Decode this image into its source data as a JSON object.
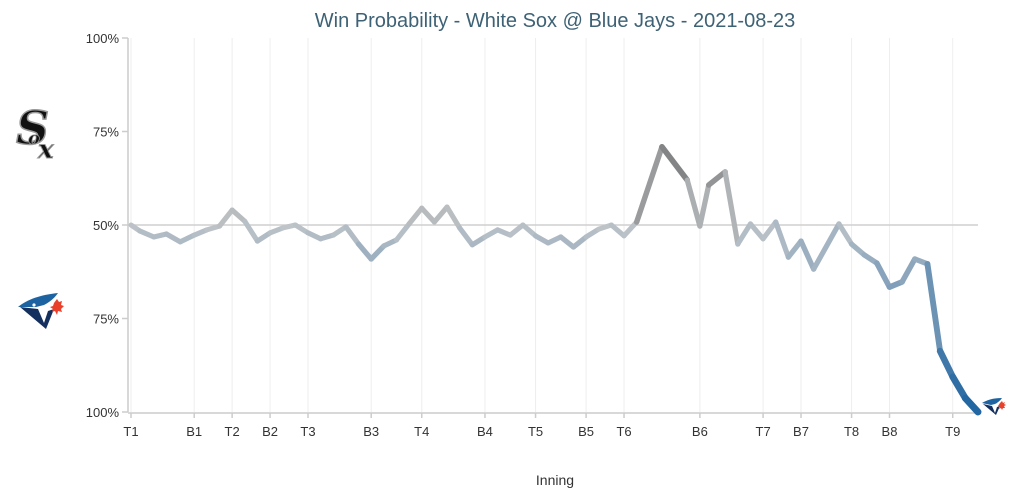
{
  "chart_data": {
    "type": "line",
    "title": "Win Probability - White Sox @ Blue Jays - 2021-08-23",
    "xlabel": "Inning",
    "ylabel": "",
    "y_meaning": "White Sox win probability (%); 50 = even, 100 = White Sox certain, 0 = Blue Jays certain",
    "ylim": [
      0,
      100
    ],
    "y_ticks": [
      {
        "value": 100,
        "label": "100%"
      },
      {
        "value": 75,
        "label": "75%"
      },
      {
        "value": 50,
        "label": "50%"
      },
      {
        "value": 25,
        "label": "75%"
      },
      {
        "value": 0,
        "label": "100%"
      }
    ],
    "x_ticks": [
      {
        "index": 0,
        "label": "T1"
      },
      {
        "index": 5,
        "label": "B1"
      },
      {
        "index": 8,
        "label": "T2"
      },
      {
        "index": 11,
        "label": "B2"
      },
      {
        "index": 14,
        "label": "T3"
      },
      {
        "index": 19,
        "label": "B3"
      },
      {
        "index": 23,
        "label": "T4"
      },
      {
        "index": 28,
        "label": "B4"
      },
      {
        "index": 32,
        "label": "T5"
      },
      {
        "index": 36,
        "label": "B5"
      },
      {
        "index": 39,
        "label": "T6"
      },
      {
        "index": 45,
        "label": "B6"
      },
      {
        "index": 50,
        "label": "T7"
      },
      {
        "index": 53,
        "label": "B7"
      },
      {
        "index": 57,
        "label": "T8"
      },
      {
        "index": 60,
        "label": "B8"
      },
      {
        "index": 65,
        "label": "T9"
      }
    ],
    "x_count": 68,
    "series": [
      {
        "name": "White Sox win probability",
        "points": [
          [
            0,
            50
          ],
          [
            0.7,
            48.4
          ],
          [
            1.8,
            46.8
          ],
          [
            2.8,
            47.6
          ],
          [
            3.9,
            45.5
          ],
          [
            5,
            47.3
          ],
          [
            6,
            48.7
          ],
          [
            7,
            49.7
          ],
          [
            8,
            54
          ],
          [
            9,
            51
          ],
          [
            10,
            45.7
          ],
          [
            11,
            47.9
          ],
          [
            12,
            49.2
          ],
          [
            13,
            50
          ],
          [
            14,
            47.9
          ],
          [
            15,
            46.3
          ],
          [
            16,
            47.3
          ],
          [
            17,
            49.5
          ],
          [
            18,
            44.9
          ],
          [
            19,
            40.9
          ],
          [
            20,
            44.4
          ],
          [
            21,
            46
          ],
          [
            22,
            50.3
          ],
          [
            23,
            54.5
          ],
          [
            24,
            50.8
          ],
          [
            25,
            54.8
          ],
          [
            26,
            49.2
          ],
          [
            27,
            44.7
          ],
          [
            28,
            46.8
          ],
          [
            29,
            48.7
          ],
          [
            30,
            47.3
          ],
          [
            31,
            50
          ],
          [
            32,
            47.1
          ],
          [
            33,
            45.2
          ],
          [
            34,
            46.8
          ],
          [
            35,
            44.1
          ],
          [
            36,
            46.8
          ],
          [
            37,
            48.9
          ],
          [
            38,
            50
          ],
          [
            39,
            47.1
          ],
          [
            40,
            50.8
          ],
          [
            42,
            70.9
          ],
          [
            44,
            62
          ],
          [
            45,
            49.7
          ],
          [
            45.7,
            60.7
          ],
          [
            47,
            64.2
          ],
          [
            48,
            44.9
          ],
          [
            49,
            50.3
          ],
          [
            50,
            46.3
          ],
          [
            51,
            50.8
          ],
          [
            52,
            41.4
          ],
          [
            53,
            45.7
          ],
          [
            54,
            38.2
          ],
          [
            56,
            50.3
          ],
          [
            57,
            44.9
          ],
          [
            58,
            42
          ],
          [
            59,
            39.8
          ],
          [
            60,
            33.4
          ],
          [
            61,
            34.8
          ],
          [
            62,
            40.9
          ],
          [
            63,
            39.6
          ],
          [
            64,
            16.3
          ],
          [
            65,
            9.4
          ],
          [
            66,
            3.7
          ],
          [
            67,
            0
          ]
        ]
      }
    ],
    "colors": {
      "neutral": "#c2c6c9",
      "white_sox": "#6e6e6e",
      "blue_jays": "#1d63a1",
      "reference_line": "#cfcfcf",
      "grid": "#eeeeee",
      "title": "#3e6275"
    },
    "legend": [
      {
        "team": "White Sox",
        "position": "left-top",
        "icon": "white-sox-logo"
      },
      {
        "team": "Blue Jays",
        "position": "left-bottom",
        "icon": "blue-jays-logo"
      }
    ],
    "end_marker": {
      "team": "Blue Jays",
      "icon": "blue-jays-logo"
    },
    "grid": true
  }
}
